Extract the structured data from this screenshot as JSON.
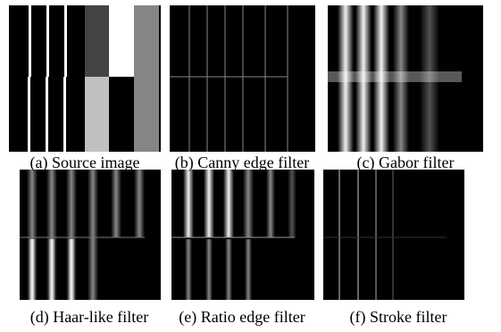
{
  "figure": {
    "panels": [
      {
        "caption": "(a) Source image"
      },
      {
        "caption": "(b) Canny edge filter"
      },
      {
        "caption": "(c) Gabor filter"
      },
      {
        "caption": "(d) Haar-like filter"
      },
      {
        "caption": "(e) Ratio edge filter"
      },
      {
        "caption": "(f) Stroke filter"
      }
    ]
  }
}
